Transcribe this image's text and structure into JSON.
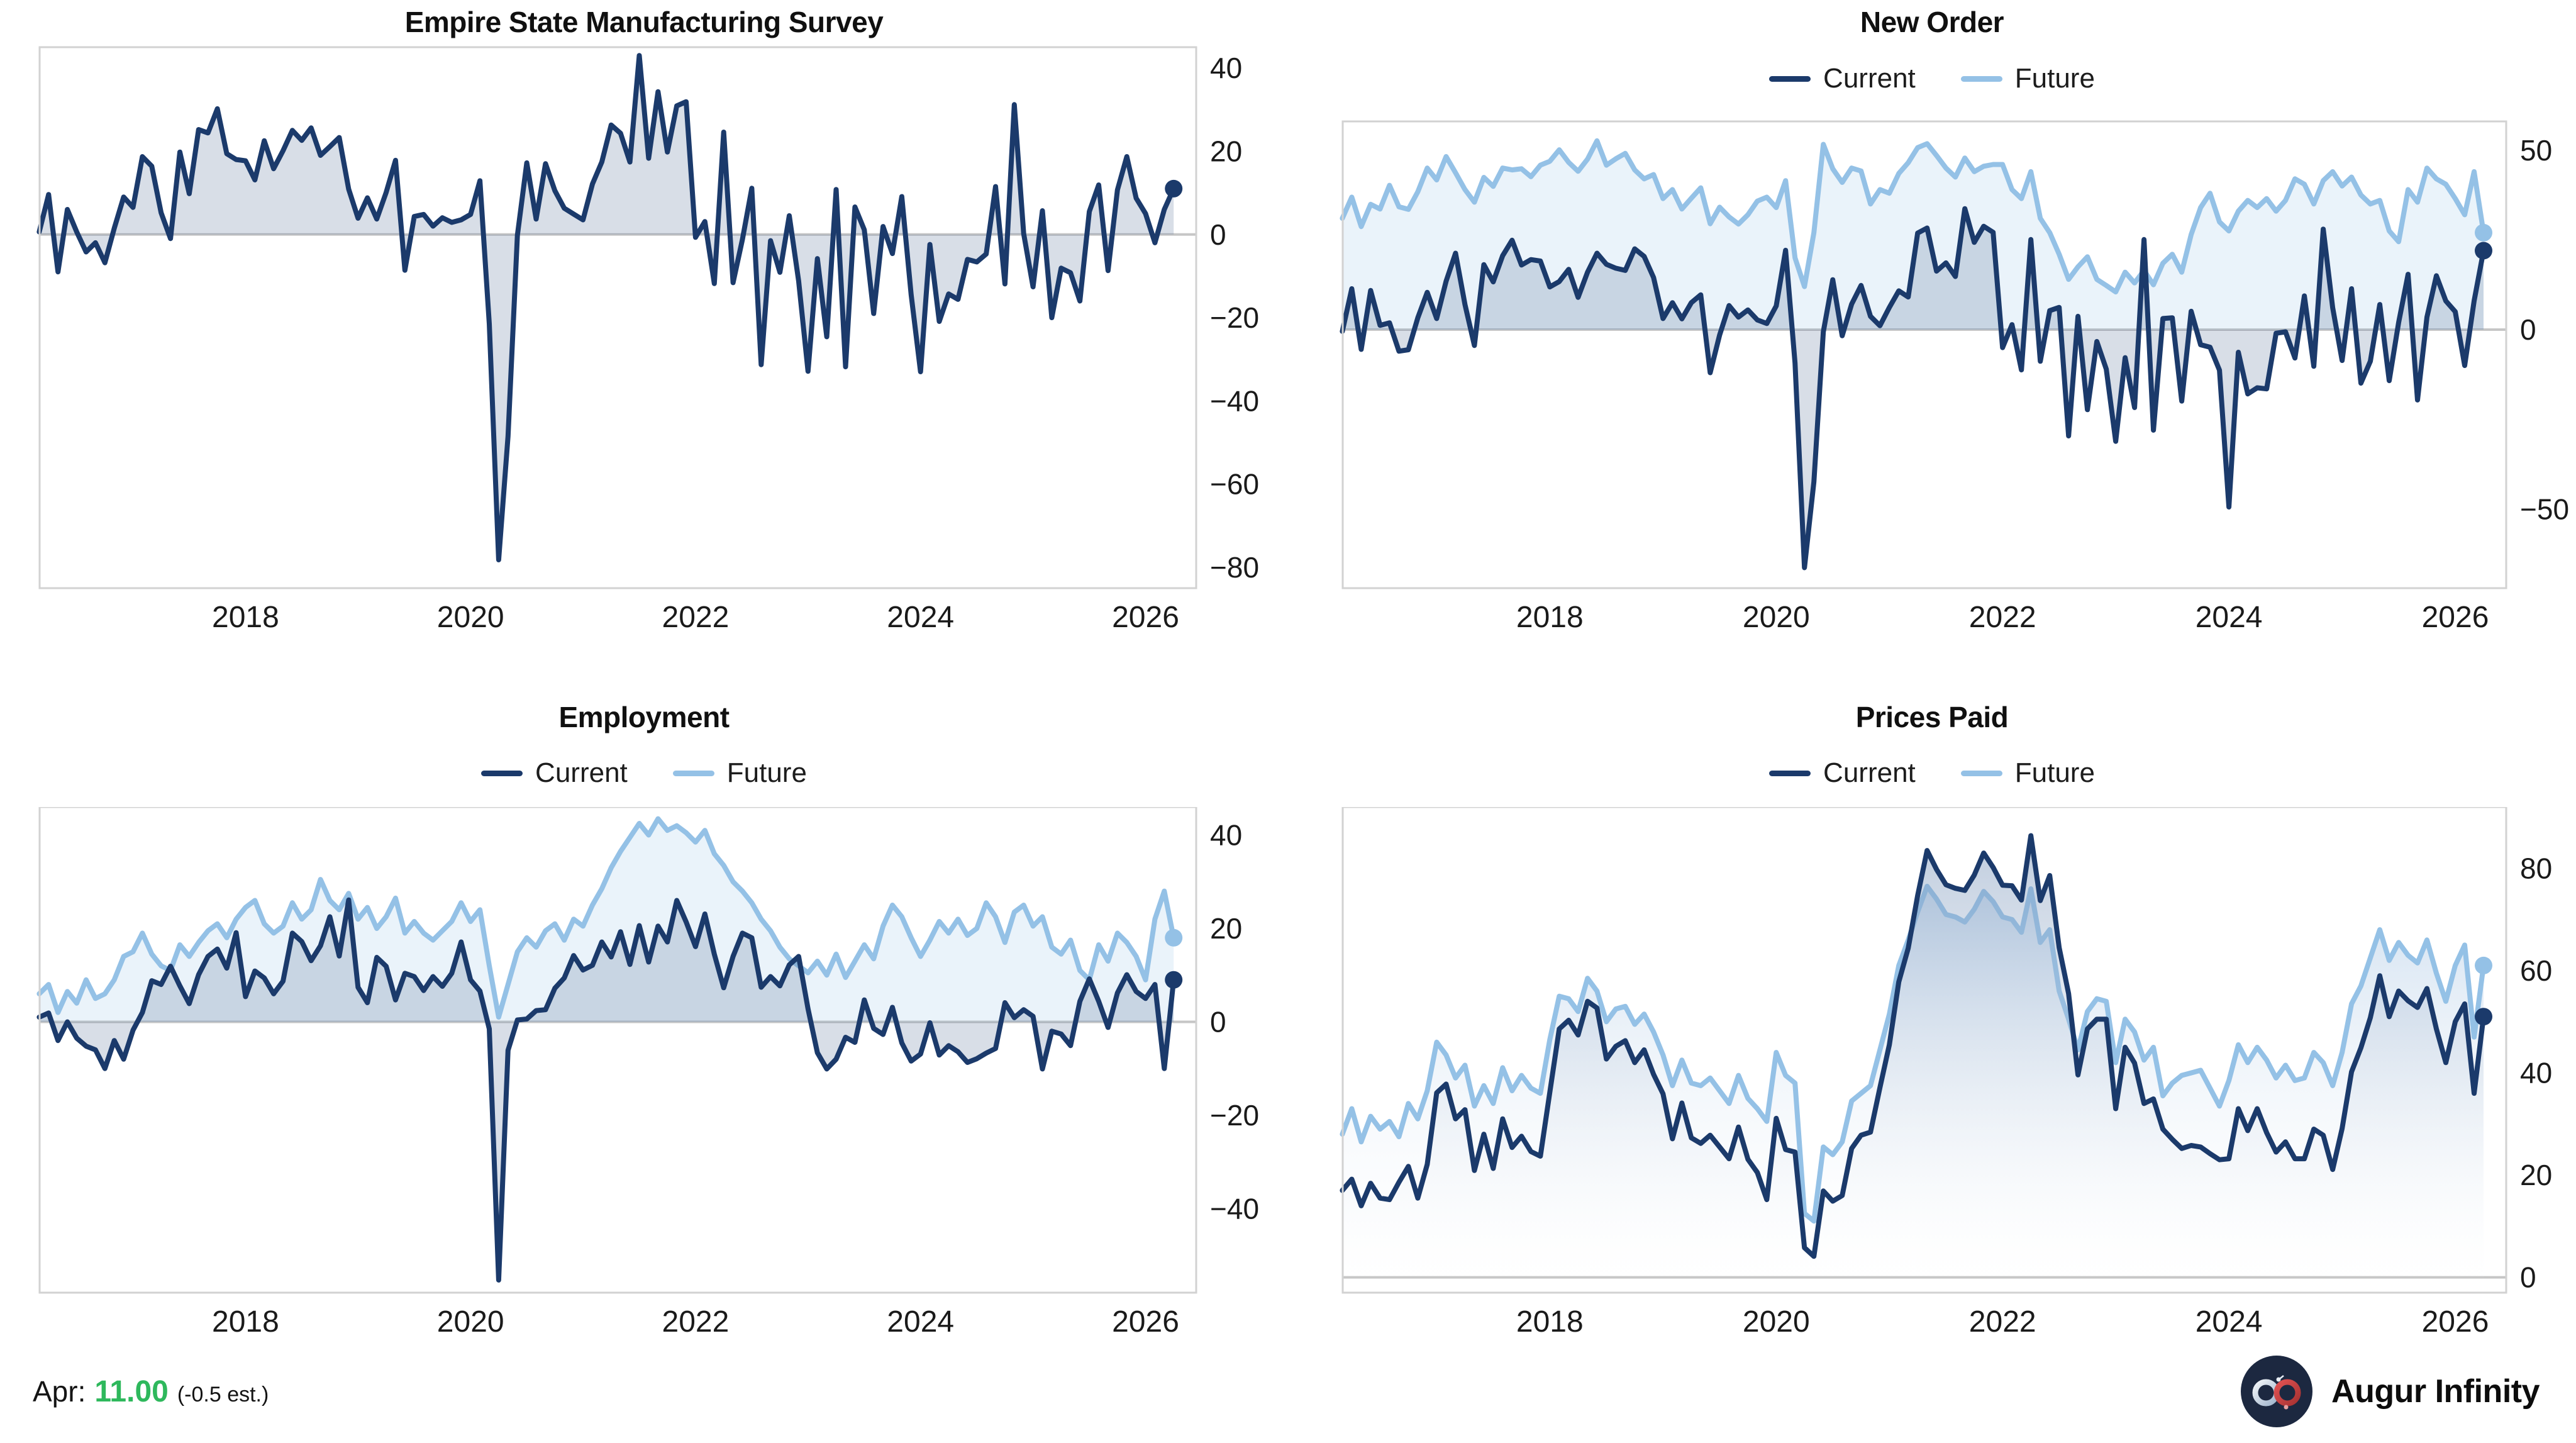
{
  "colors": {
    "current": "#1b3a6b",
    "future": "#94c1e6",
    "current_fill": "rgba(94,116,153,0.24)",
    "future_fill": "rgba(148,193,230,0.20)",
    "grid_zero": "#c6c6c6",
    "plot_border": "#d2d2d2",
    "positive_green": "#2eb85c",
    "logo_bg": "#1c2840"
  },
  "footer": {
    "month_label": "Apr:",
    "value": "11.00",
    "estimate": "(-0.5 est.)",
    "brand": "Augur Infinity"
  },
  "chart_data": [
    {
      "type": "line",
      "title": "Empire State Manufacturing Survey",
      "frequency": "monthly",
      "x_start": "2016-03",
      "x_end": "2026-04",
      "xlim": [
        2016.17,
        2026.45
      ],
      "x_ticks": [
        2018,
        2020,
        2022,
        2024,
        2026
      ],
      "ylim": [
        -85,
        45
      ],
      "y_ticks": [
        40,
        20,
        0,
        -20,
        -40,
        -60,
        -80
      ],
      "legend": false,
      "series": [
        {
          "name": "Current",
          "values": [
            0.6,
            9.6,
            -9.0,
            6.0,
            0.6,
            -4.2,
            -2.0,
            -6.8,
            1.5,
            9.0,
            6.5,
            18.7,
            16.4,
            5.2,
            -1.0,
            19.8,
            9.8,
            25.2,
            24.4,
            30.2,
            19.4,
            18.0,
            17.7,
            13.1,
            22.5,
            15.8,
            20.1,
            25.0,
            22.6,
            25.6,
            19.0,
            21.1,
            23.3,
            10.9,
            3.9,
            8.8,
            3.7,
            10.1,
            17.8,
            -8.6,
            4.3,
            4.8,
            2.0,
            4.0,
            2.9,
            3.5,
            4.8,
            12.9,
            -21.5,
            -78.2,
            -48.5,
            -0.2,
            17.2,
            3.7,
            17.0,
            10.5,
            6.3,
            4.9,
            3.5,
            12.1,
            17.4,
            26.3,
            24.3,
            17.4,
            43.0,
            18.3,
            34.3,
            19.8,
            30.9,
            31.9,
            -0.7,
            3.1,
            -11.8,
            24.6,
            -11.6,
            -1.2,
            11.1,
            -31.3,
            -1.5,
            -9.1,
            4.5,
            -11.2,
            -32.9,
            -5.8,
            -24.6,
            10.8,
            -31.8,
            6.6,
            1.1,
            -19.0,
            1.9,
            -4.6,
            9.1,
            -14.5,
            -33.0,
            -2.4,
            -20.9,
            -14.3,
            -15.6,
            -6.0,
            -6.6,
            -4.7,
            11.5,
            -11.9,
            31.2,
            0.2,
            -12.6,
            5.7,
            -20.0,
            -8.1,
            -9.2,
            -16.0,
            5.5,
            11.9,
            -8.7,
            10.7,
            18.7,
            8.7,
            5.0,
            -2.0,
            6.0,
            11.0
          ]
        }
      ]
    },
    {
      "type": "line",
      "title": "New Order",
      "frequency": "monthly",
      "x_start": "2016-03",
      "x_end": "2026-04",
      "xlim": [
        2016.17,
        2026.45
      ],
      "x_ticks": [
        2018,
        2020,
        2022,
        2024,
        2026
      ],
      "ylim": [
        -72,
        58
      ],
      "y_ticks": [
        50,
        0,
        -50
      ],
      "legend": true,
      "series": [
        {
          "name": "Current",
          "values": [
            -0.5,
            11.4,
            -5.5,
            10.9,
            1.2,
            1.9,
            -6.0,
            -5.6,
            3.3,
            10.4,
            3.1,
            13.5,
            21.3,
            7.0,
            -4.4,
            18.1,
            13.3,
            20.6,
            24.9,
            18.0,
            19.5,
            19.1,
            11.9,
            13.4,
            16.8,
            9.0,
            16.0,
            21.3,
            18.2,
            17.1,
            16.5,
            22.5,
            20.4,
            14.5,
            3.1,
            7.5,
            3.0,
            7.5,
            9.7,
            -12.0,
            -1.5,
            6.7,
            3.5,
            5.5,
            2.7,
            1.7,
            6.6,
            22.1,
            -9.3,
            -66.3,
            -42.4,
            -0.6,
            13.9,
            -1.7,
            7.1,
            12.3,
            3.7,
            1.1,
            6.2,
            10.8,
            9.1,
            26.9,
            28.3,
            16.3,
            18.6,
            14.8,
            33.7,
            24.3,
            28.8,
            27.1,
            -5.0,
            1.4,
            -11.2,
            25.1,
            -8.8,
            5.3,
            6.2,
            -29.6,
            3.7,
            -22.3,
            -3.3,
            -11.0,
            -31.1,
            -7.8,
            -21.7,
            25.1,
            -28.0,
            3.1,
            3.3,
            -19.9,
            5.1,
            -4.2,
            -4.9,
            -11.3,
            -49.4,
            -6.3,
            -17.9,
            -16.2,
            -16.5,
            -1.0,
            -0.6,
            -7.9,
            9.4,
            -10.2,
            28.0,
            6.1,
            -8.6,
            11.4,
            -14.9,
            -8.8,
            7.0,
            -14.2,
            2.0,
            15.4,
            -19.6,
            3.5,
            15.0,
            8.0,
            5.0,
            -10.0,
            8.0,
            22.0
          ]
        },
        {
          "name": "Future",
          "values": [
            31.0,
            36.9,
            28.7,
            34.9,
            33.6,
            40.2,
            34.2,
            33.5,
            38.4,
            45.0,
            41.7,
            48.2,
            43.7,
            39.0,
            35.5,
            42.4,
            39.9,
            45.0,
            44.5,
            44.8,
            42.6,
            45.8,
            46.9,
            50.1,
            46.6,
            44.1,
            47.5,
            52.6,
            45.8,
            47.6,
            49.1,
            44.5,
            42.0,
            43.2,
            36.5,
            39.0,
            33.6,
            36.6,
            39.5,
            29.5,
            34.1,
            31.4,
            29.4,
            32.0,
            35.8,
            36.9,
            34.0,
            41.5,
            20.0,
            12.0,
            27.0,
            51.6,
            44.8,
            41.0,
            45.0,
            44.2,
            35.0,
            39.0,
            38.0,
            43.5,
            46.5,
            50.7,
            51.8,
            48.5,
            45.0,
            42.5,
            47.8,
            44.0,
            45.5,
            46.0,
            46.0,
            39.0,
            36.5,
            44.0,
            31.0,
            27.0,
            21.0,
            14.0,
            17.5,
            20.3,
            14.0,
            12.3,
            10.5,
            16.0,
            13.0,
            16.5,
            12.5,
            18.5,
            21.0,
            16.0,
            26.5,
            34.0,
            38.0,
            30.0,
            27.5,
            33.0,
            36.0,
            34.0,
            36.5,
            33.0,
            36.0,
            42.0,
            40.5,
            35.0,
            41.5,
            44.0,
            40.0,
            42.5,
            37.5,
            35.0,
            36.0,
            27.5,
            24.5,
            39.0,
            35.5,
            45.0,
            42.0,
            40.5,
            36.5,
            32.0,
            44.0,
            27.0
          ]
        }
      ]
    },
    {
      "type": "line",
      "title": "Employment",
      "frequency": "monthly",
      "x_start": "2016-03",
      "x_end": "2026-04",
      "xlim": [
        2016.17,
        2026.45
      ],
      "x_ticks": [
        2018,
        2020,
        2022,
        2024,
        2026
      ],
      "ylim": [
        -58,
        46
      ],
      "y_ticks": [
        40,
        20,
        0,
        -20,
        -40
      ],
      "legend": true,
      "series": [
        {
          "name": "Current",
          "values": [
            1.0,
            1.9,
            -4.0,
            0.0,
            -3.5,
            -5.2,
            -6.0,
            -10.0,
            -4.0,
            -8.0,
            -1.8,
            2.0,
            8.8,
            8.0,
            11.9,
            7.7,
            3.9,
            10.1,
            14.0,
            15.6,
            11.5,
            19.1,
            5.4,
            10.9,
            9.4,
            6.0,
            8.7,
            19.0,
            17.2,
            13.1,
            16.3,
            22.5,
            14.1,
            26.1,
            7.4,
            4.1,
            13.8,
            11.9,
            4.7,
            10.4,
            9.7,
            6.7,
            9.7,
            7.6,
            10.4,
            17.1,
            9.0,
            6.6,
            -1.5,
            -55.3,
            -6.1,
            0.4,
            0.6,
            2.4,
            2.6,
            7.2,
            9.4,
            14.2,
            11.1,
            12.1,
            17.1,
            13.9,
            19.3,
            12.3,
            20.6,
            12.8,
            20.5,
            17.1,
            26.0,
            21.4,
            16.1,
            23.1,
            14.5,
            7.3,
            14.0,
            19.0,
            18.0,
            7.4,
            9.7,
            7.7,
            12.2,
            14.0,
            2.8,
            -6.6,
            -10.1,
            -8.0,
            -3.3,
            -4.4,
            4.7,
            -1.4,
            -2.7,
            3.1,
            -4.5,
            -8.4,
            -6.9,
            -0.2,
            -7.1,
            -5.1,
            -6.4,
            -8.7,
            -7.9,
            -6.7,
            -5.7,
            4.1,
            0.9,
            2.6,
            1.2,
            -10.1,
            -2.0,
            -2.6,
            -5.1,
            4.4,
            9.2,
            4.4,
            -1.2,
            6.2,
            10.1,
            6.5,
            5.0,
            8.0,
            -10.0,
            9.0
          ]
        },
        {
          "name": "Future",
          "values": [
            6.0,
            8.0,
            2.0,
            6.5,
            4.0,
            9.0,
            5.0,
            6.0,
            9.0,
            14.0,
            15.0,
            19.0,
            14.5,
            12.0,
            11.0,
            16.5,
            14.0,
            17.0,
            19.5,
            21.0,
            18.0,
            22.0,
            24.5,
            26.0,
            21.0,
            19.0,
            20.5,
            25.5,
            22.0,
            24.0,
            30.5,
            26.0,
            24.0,
            27.5,
            22.0,
            24.5,
            20.0,
            22.5,
            26.5,
            19.0,
            21.5,
            19.0,
            17.5,
            19.5,
            21.5,
            25.5,
            21.5,
            24.0,
            12.0,
            1.0,
            8.0,
            15.0,
            18.0,
            16.0,
            19.5,
            21.0,
            17.5,
            22.0,
            20.5,
            25.0,
            28.5,
            33.0,
            36.5,
            39.5,
            42.5,
            40.0,
            43.5,
            41.0,
            42.0,
            40.5,
            38.5,
            41.0,
            36.0,
            33.5,
            30.0,
            28.0,
            25.5,
            22.0,
            19.5,
            16.0,
            13.5,
            12.0,
            10.5,
            13.0,
            10.0,
            14.5,
            9.5,
            13.0,
            16.5,
            13.5,
            20.5,
            25.0,
            22.5,
            18.0,
            14.0,
            17.5,
            21.5,
            19.0,
            22.0,
            18.5,
            20.0,
            25.5,
            22.5,
            17.0,
            23.5,
            25.0,
            20.5,
            22.5,
            16.0,
            14.5,
            17.5,
            11.0,
            9.0,
            16.5,
            13.0,
            19.0,
            17.0,
            14.0,
            9.0,
            22.0,
            28.0,
            18.0
          ]
        }
      ]
    },
    {
      "type": "line",
      "title": "Prices Paid",
      "frequency": "monthly",
      "x_start": "2016-03",
      "x_end": "2026-04",
      "xlim": [
        2016.17,
        2026.45
      ],
      "x_ticks": [
        2018,
        2020,
        2022,
        2024,
        2026
      ],
      "ylim": [
        -3,
        92
      ],
      "y_ticks": [
        80,
        60,
        40,
        20,
        0
      ],
      "legend": true,
      "series": [
        {
          "name": "Current",
          "values": [
            17.0,
            19.2,
            14.0,
            18.4,
            15.5,
            15.2,
            18.6,
            21.7,
            15.5,
            22.1,
            36.1,
            37.8,
            31.0,
            32.8,
            20.9,
            28.0,
            21.3,
            31.0,
            25.4,
            27.6,
            24.6,
            23.7,
            36.2,
            48.6,
            50.3,
            47.4,
            54.0,
            52.7,
            42.7,
            45.2,
            46.3,
            42.0,
            44.5,
            39.7,
            35.9,
            27.1,
            34.1,
            27.3,
            26.2,
            27.8,
            25.5,
            23.2,
            29.4,
            23.1,
            20.5,
            15.2,
            31.1,
            25.0,
            24.5,
            5.8,
            4.1,
            16.9,
            14.9,
            16.0,
            25.2,
            27.8,
            28.4,
            37.1,
            45.5,
            57.8,
            64.4,
            74.7,
            83.5,
            79.8,
            76.8,
            76.1,
            75.7,
            78.7,
            83.0,
            80.2,
            76.7,
            76.6,
            73.8,
            86.4,
            73.7,
            78.6,
            64.5,
            55.5,
            39.6,
            48.6,
            50.5,
            50.5,
            33.0,
            45.0,
            41.9,
            34.0,
            34.9,
            29.0,
            27.0,
            25.2,
            25.8,
            25.5,
            24.2,
            23.0,
            23.2,
            33.0,
            28.7,
            33.0,
            28.3,
            24.5,
            26.5,
            23.2,
            23.2,
            29.0,
            27.8,
            21.1,
            29.1,
            40.2,
            44.9,
            50.8,
            59.0,
            51.0,
            56.0,
            54.1,
            52.8,
            56.5,
            48.6,
            42.0,
            50.0,
            53.5,
            36.0,
            51.0
          ]
        },
        {
          "name": "Future",
          "values": [
            28.0,
            33.0,
            26.5,
            31.5,
            29.0,
            30.5,
            27.5,
            34.0,
            31.0,
            36.5,
            46.0,
            43.5,
            39.0,
            41.5,
            33.5,
            37.5,
            34.0,
            41.0,
            36.5,
            39.5,
            37.0,
            36.0,
            46.5,
            55.0,
            54.5,
            52.0,
            58.5,
            56.0,
            50.0,
            52.5,
            53.0,
            49.5,
            51.5,
            48.0,
            43.5,
            37.5,
            42.5,
            38.0,
            37.5,
            39.0,
            36.5,
            34.0,
            39.5,
            35.0,
            33.0,
            30.5,
            44.0,
            39.5,
            38.0,
            12.5,
            11.0,
            25.5,
            24.0,
            26.5,
            34.5,
            36.0,
            37.5,
            44.5,
            51.5,
            61.0,
            66.0,
            71.5,
            76.5,
            74.0,
            71.0,
            70.5,
            69.5,
            72.0,
            75.5,
            73.5,
            70.5,
            70.0,
            67.5,
            76.0,
            65.5,
            68.0,
            56.0,
            50.5,
            44.5,
            52.0,
            54.5,
            54.0,
            42.0,
            50.5,
            48.0,
            42.5,
            45.0,
            35.5,
            38.0,
            39.5,
            40.0,
            40.5,
            37.0,
            33.5,
            38.5,
            45.5,
            42.0,
            45.0,
            42.5,
            39.0,
            41.5,
            38.5,
            39.0,
            44.0,
            42.0,
            37.5,
            44.0,
            53.5,
            57.0,
            62.5,
            68.0,
            62.0,
            65.5,
            63.0,
            61.5,
            66.0,
            59.5,
            54.0,
            61.0,
            65.0,
            47.0,
            61.0
          ]
        }
      ]
    }
  ]
}
